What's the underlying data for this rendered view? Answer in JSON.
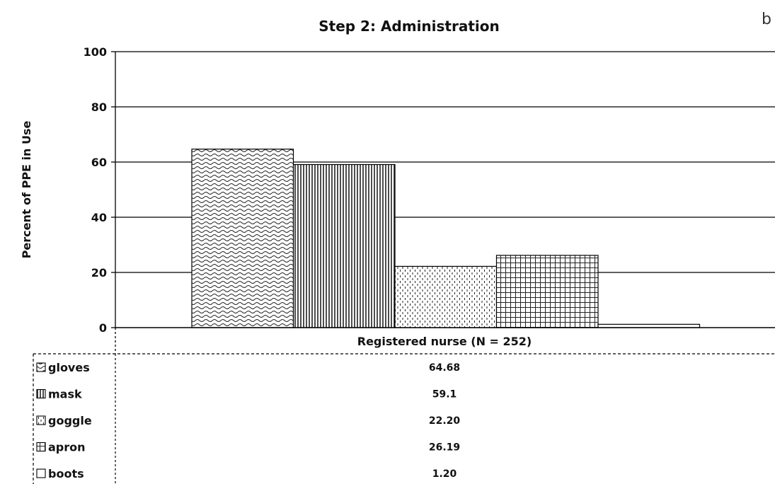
{
  "chart_data": {
    "type": "bar",
    "title": "Step 2: Administration",
    "panel_label": "b",
    "ylabel": "Percent of PPE in Use",
    "xlabel": "",
    "ylim": [
      0,
      100
    ],
    "yticks": [
      0,
      20,
      40,
      60,
      80,
      100
    ],
    "grid": true,
    "categories": [
      "Registered nurse (N = 252)"
    ],
    "series": [
      {
        "name": "gloves",
        "values": [
          64.68
        ],
        "value_label": "64.68",
        "pattern": "wave"
      },
      {
        "name": "mask",
        "values": [
          59.1
        ],
        "value_label": "59.1",
        "pattern": "vlines"
      },
      {
        "name": "goggle",
        "values": [
          22.2
        ],
        "value_label": "22.20",
        "pattern": "dots"
      },
      {
        "name": "apron",
        "values": [
          26.19
        ],
        "value_label": "26.19",
        "pattern": "grid"
      },
      {
        "name": "boots",
        "values": [
          1.2
        ],
        "value_label": "1.20",
        "pattern": "blank"
      }
    ],
    "legend_placement": "data-table-left"
  }
}
